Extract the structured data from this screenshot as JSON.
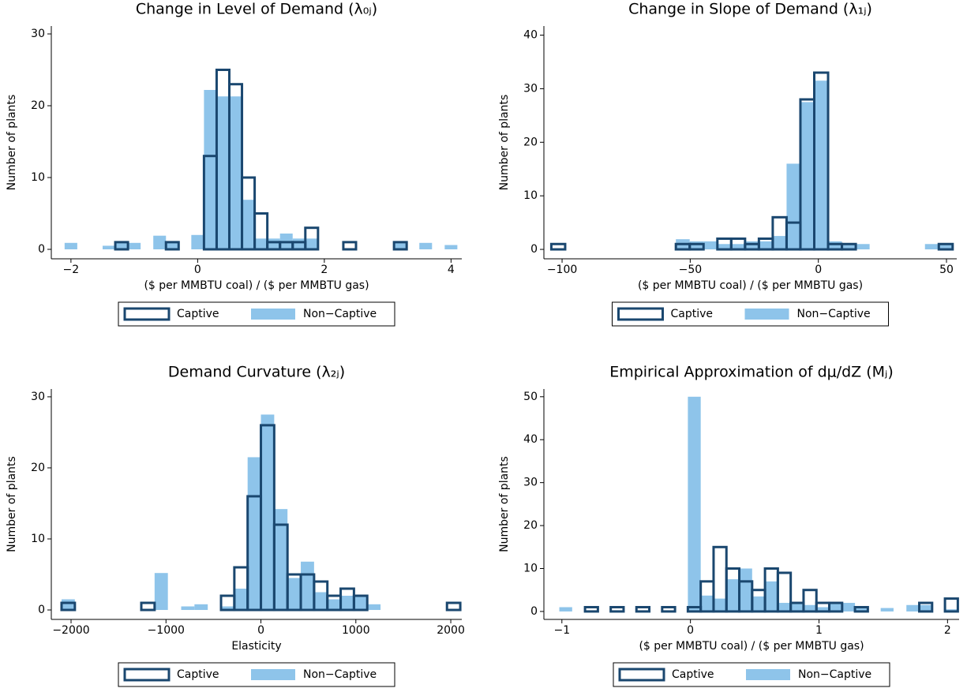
{
  "chart_data": [
    {
      "type": "histogram",
      "title": "Change in Level of Demand (λ₀ⱼ)",
      "xlabel": "($ per MMBTU coal) / ($ per MMBTU gas)",
      "ylabel": "Number of plants",
      "legend": "bottom",
      "xlim": [
        -2.31,
        4.17
      ],
      "ylim": [
        -1.32,
        31.1
      ],
      "xticks": [
        {
          "value": -2,
          "label": "−2"
        },
        0,
        2,
        4
      ],
      "yticks": [
        0,
        10,
        20,
        30
      ],
      "series": [
        {
          "name": "Non−Captive",
          "color": "#8ec4ea",
          "style": "filled",
          "bins": [
            -2.1,
            -1.9,
            -1.7,
            -1.5,
            -1.3,
            -1.1,
            -0.9,
            -0.7,
            -0.5,
            -0.3,
            -0.1,
            0.1,
            0.3,
            0.5,
            0.7,
            0.9,
            1.1,
            1.3,
            1.5,
            1.7,
            1.9,
            2.1,
            2.3,
            2.5,
            2.7,
            2.9,
            3.1,
            3.3,
            3.5,
            3.7,
            3.9,
            4.1
          ],
          "values": [
            0.9,
            0,
            0,
            0.5,
            0.9,
            0.9,
            0,
            1.9,
            1,
            0,
            2,
            22.2,
            21.3,
            21.3,
            6.9,
            1.5,
            1.5,
            2.2,
            1.5,
            1.5,
            0,
            0,
            0,
            0,
            0,
            0,
            0.9,
            0,
            0.9,
            0,
            0.6
          ]
        },
        {
          "name": "Captive",
          "color": "#1a476f",
          "style": "outline",
          "bins": [
            -1.3,
            -1.1,
            -0.9,
            -0.7,
            -0.5,
            -0.3,
            -0.1,
            0.1,
            0.3,
            0.5,
            0.7,
            0.9,
            1.1,
            1.3,
            1.5,
            1.7,
            1.9,
            2.1,
            2.3,
            2.5,
            2.7,
            2.9,
            3.1,
            3.3
          ],
          "values": [
            1,
            0,
            0,
            0,
            1,
            0,
            0,
            13,
            25,
            23,
            10,
            5,
            1,
            1,
            1,
            3,
            0,
            0,
            1,
            0,
            0,
            0,
            1
          ]
        }
      ]
    },
    {
      "type": "histogram",
      "title": "Change in Slope of Demand (λ₁ⱼ)",
      "xlabel": "($ per MMBTU coal) / ($ per MMBTU gas)",
      "ylabel": "Number of plants",
      "legend": "bottom",
      "xlim": [
        -107.1,
        54.0
      ],
      "ylim": [
        -1.76,
        41.7
      ],
      "xticks": [
        {
          "value": -100,
          "label": "−100"
        },
        {
          "value": -50,
          "label": "−50"
        },
        0,
        50
      ],
      "yticks": [
        0,
        10,
        20,
        30,
        40
      ],
      "series": [
        {
          "name": "Non−Captive",
          "color": "#8ec4ea",
          "style": "filled",
          "bins": [
            -104.2,
            -98.8,
            -93.4,
            -88,
            -82.6,
            -77.2,
            -71.8,
            -66.4,
            -61,
            -55.6,
            -50.2,
            -44.8,
            -39.4,
            -34,
            -28.6,
            -23.2,
            -17.8,
            -12.4,
            -7,
            -1.6,
            3.8,
            9.2,
            14.6,
            20,
            25.4,
            30.8,
            36.2,
            41.6,
            47,
            52.4
          ],
          "values": [
            0,
            0,
            0,
            0,
            0,
            0,
            0,
            0,
            0,
            1.9,
            1.5,
            1.5,
            1,
            1,
            1.5,
            1.5,
            2.5,
            16,
            27.5,
            31.5,
            1.5,
            1,
            1,
            0,
            0,
            0,
            0,
            1,
            1
          ]
        },
        {
          "name": "Captive",
          "color": "#1a476f",
          "style": "outline",
          "bins": [
            -104.2,
            -98.8,
            -93.4,
            -88,
            -82.6,
            -77.2,
            -71.8,
            -66.4,
            -61,
            -55.6,
            -50.2,
            -44.8,
            -39.4,
            -34,
            -28.6,
            -23.2,
            -17.8,
            -12.4,
            -7,
            -1.6,
            3.8,
            9.2,
            14.6,
            20,
            25.4,
            30.8,
            36.2,
            41.6,
            47,
            52.4
          ],
          "values": [
            1,
            0,
            0,
            0,
            0,
            0,
            0,
            0,
            0,
            1,
            1,
            0,
            2,
            2,
            1,
            2,
            6,
            5,
            28,
            33,
            1,
            1,
            0,
            0,
            0,
            0,
            0,
            0,
            1
          ]
        }
      ]
    },
    {
      "type": "histogram",
      "title": "Demand Curvature (λ₂ⱼ)",
      "xlabel": "Elasticity",
      "ylabel": "Number of plants",
      "legend": "bottom",
      "xlim": [
        -2208,
        2116
      ],
      "ylim": [
        -1.33,
        31.1
      ],
      "xticks": [
        {
          "value": -2000,
          "label": "−2000"
        },
        {
          "value": -1000,
          "label": "−1000"
        },
        0,
        1000,
        2000
      ],
      "yticks": [
        0,
        10,
        20,
        30
      ],
      "series": [
        {
          "name": "Non−Captive",
          "color": "#8ec4ea",
          "style": "filled",
          "bins": [
            -2100,
            -1960,
            -1820,
            -1680,
            -1540,
            -1400,
            -1260,
            -1120,
            -980,
            -840,
            -700,
            -560,
            -420,
            -280,
            -140,
            0,
            140,
            280,
            420,
            560,
            700,
            840,
            980,
            1120,
            1260,
            1400,
            1540,
            1680,
            1820,
            1960,
            2100
          ],
          "values": [
            1.5,
            0,
            0,
            0,
            0,
            0,
            0,
            5.2,
            0,
            0.5,
            0.8,
            0,
            0.5,
            3,
            21.5,
            27.5,
            14.2,
            4.5,
            6.8,
            2.5,
            1.5,
            2,
            2,
            0.8,
            0,
            0,
            0,
            0,
            0,
            0
          ]
        },
        {
          "name": "Captive",
          "color": "#1a476f",
          "style": "outline",
          "bins": [
            -2100,
            -1960,
            -1820,
            -1680,
            -1540,
            -1400,
            -1260,
            -1120,
            -980,
            -840,
            -700,
            -560,
            -420,
            -280,
            -140,
            0,
            140,
            280,
            420,
            560,
            700,
            840,
            980,
            1120,
            1260,
            1400,
            1540,
            1680,
            1820,
            1960,
            2100
          ],
          "values": [
            1,
            0,
            0,
            0,
            0,
            0,
            1,
            0,
            0,
            0,
            0,
            0,
            2,
            6,
            16,
            26,
            12,
            5,
            5,
            4,
            2,
            3,
            2,
            0,
            0,
            0,
            0,
            0,
            0,
            1
          ]
        }
      ]
    },
    {
      "type": "histogram",
      "title": "Empirical Approximation of dμ/dZ (Mⱼ)",
      "xlabel": "($ per MMBTU coal) / ($ per MMBTU gas)",
      "ylabel": "Number of plants",
      "legend": "bottom",
      "xlim": [
        -1.14,
        2.09
      ],
      "ylim": [
        -1.85,
        51.8
      ],
      "xticks": [
        {
          "value": -1,
          "label": "−1"
        },
        0,
        1,
        2
      ],
      "yticks": [
        0,
        10,
        20,
        30,
        40,
        50
      ],
      "series": [
        {
          "name": "Non−Captive",
          "color": "#8ec4ea",
          "style": "filled",
          "bins": [
            -1.02,
            -0.92,
            -0.82,
            -0.72,
            -0.62,
            -0.52,
            -0.42,
            -0.32,
            -0.22,
            -0.12,
            -0.02,
            0.08,
            0.18,
            0.28,
            0.38,
            0.48,
            0.58,
            0.68,
            0.78,
            0.88,
            0.98,
            1.08,
            1.18,
            1.28,
            1.38,
            1.48,
            1.58,
            1.68,
            1.78,
            1.88,
            1.98,
            2.08
          ],
          "values": [
            1,
            0,
            0,
            0,
            0,
            0,
            0,
            0,
            0,
            0,
            50,
            3.7,
            3,
            7.5,
            10,
            3.5,
            7,
            2,
            2,
            1.5,
            1,
            2,
            2,
            1,
            0,
            0.8,
            0,
            1.5,
            1.5,
            0,
            0.5
          ]
        },
        {
          "name": "Captive",
          "color": "#1a476f",
          "style": "outline",
          "bins": [
            -1.02,
            -0.92,
            -0.82,
            -0.72,
            -0.62,
            -0.52,
            -0.42,
            -0.32,
            -0.22,
            -0.12,
            -0.02,
            0.08,
            0.18,
            0.28,
            0.38,
            0.48,
            0.58,
            0.68,
            0.78,
            0.88,
            0.98,
            1.08,
            1.18,
            1.28,
            1.38,
            1.48,
            1.58,
            1.68,
            1.78,
            1.88,
            1.98,
            2.08
          ],
          "values": [
            0,
            0,
            1,
            0,
            1,
            0,
            1,
            0,
            1,
            0,
            1,
            7,
            15,
            10,
            7,
            5,
            10,
            9,
            2,
            5,
            2,
            2,
            0,
            1,
            0,
            0,
            0,
            0,
            2,
            0,
            3
          ]
        }
      ]
    }
  ]
}
